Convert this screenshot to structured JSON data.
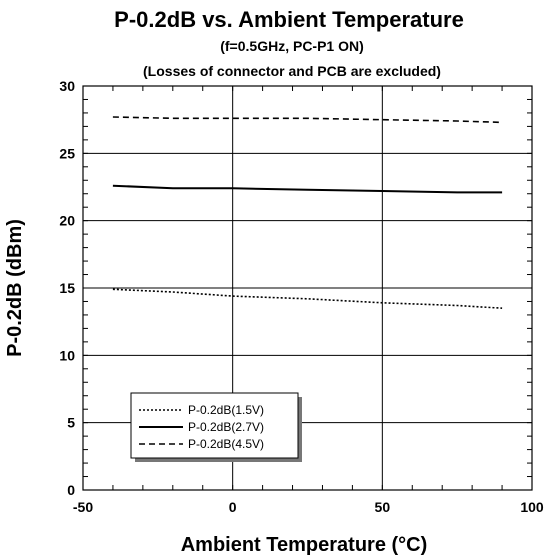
{
  "chart_data": {
    "type": "line",
    "title": "P-0.2dB vs. Ambient Temperature",
    "subtitle_1": "(f=0.5GHz, PC-P1 ON)",
    "subtitle_2": "(Losses of connector and PCB are excluded)",
    "xlabel": "Ambient Temperature (°C)",
    "ylabel": "P-0.2dB (dBm)",
    "xlim": [
      -50,
      100
    ],
    "ylim": [
      0,
      30
    ],
    "x_ticks": [
      -50,
      0,
      50,
      100
    ],
    "y_ticks": [
      0,
      5,
      10,
      15,
      20,
      25,
      30
    ],
    "grid": true,
    "legend_position": "bottom-left",
    "series": [
      {
        "name": "P-0.2dB(1.5V)",
        "dash": "dotted",
        "x": [
          -40,
          -20,
          0,
          25,
          50,
          75,
          90
        ],
        "y": [
          14.9,
          14.7,
          14.4,
          14.2,
          13.9,
          13.7,
          13.5
        ]
      },
      {
        "name": "P-0.2dB(2.7V)",
        "dash": "solid",
        "x": [
          -40,
          -20,
          0,
          25,
          50,
          75,
          90
        ],
        "y": [
          22.6,
          22.4,
          22.4,
          22.3,
          22.2,
          22.1,
          22.1
        ]
      },
      {
        "name": "P-0.2dB(4.5V)",
        "dash": "dashed",
        "x": [
          -40,
          -20,
          0,
          25,
          50,
          75,
          90
        ],
        "y": [
          27.7,
          27.6,
          27.6,
          27.6,
          27.5,
          27.4,
          27.3
        ]
      }
    ]
  }
}
